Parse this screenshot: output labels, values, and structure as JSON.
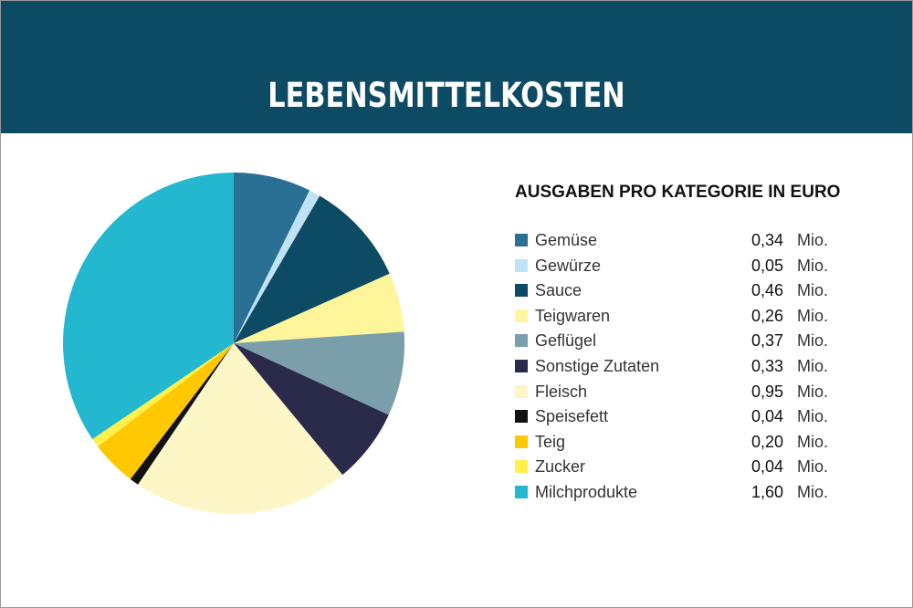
{
  "header": {
    "title": "LEBENSMITTELKOSTEN"
  },
  "chart_data": {
    "type": "pie",
    "title": "AUSGABEN PRO KATEGORIE IN EURO",
    "unit": "Mio.",
    "legend_position": "right",
    "categories": [
      "Gemüse",
      "Gewürze",
      "Sauce",
      "Teigwaren",
      "Geflügel",
      "Sonstige Zutaten",
      "Fleisch",
      "Speisefett",
      "Teig",
      "Zucker",
      "Milchprodukte"
    ],
    "values": [
      0.34,
      0.05,
      0.46,
      0.26,
      0.37,
      0.33,
      0.95,
      0.04,
      0.2,
      0.04,
      1.6
    ],
    "value_labels": [
      "0,34",
      "0,05",
      "0,46",
      "0,26",
      "0,37",
      "0,33",
      "0,95",
      "0,04",
      "0,20",
      "0,04",
      "1,60"
    ],
    "colors": [
      "#2a6f94",
      "#bfe3f5",
      "#0d4a63",
      "#fff59a",
      "#7a9faa",
      "#2a2b4a",
      "#fdf6c6",
      "#111111",
      "#ffc800",
      "#fff04a",
      "#23b8cf"
    ]
  }
}
